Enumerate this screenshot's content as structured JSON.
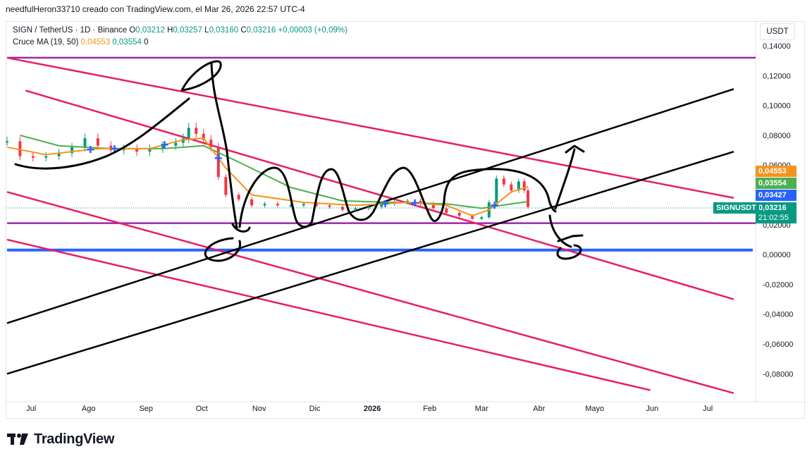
{
  "header": {
    "attribution": "needfulHeron33710 creado con TradingView.com, el Mar 26, 2026 22:57 UTC-4"
  },
  "legend": {
    "pair": "SIGN / TetherUS · 1D · Binance",
    "open_label": "O",
    "open": "0,03212",
    "high_label": "H",
    "high": "0,03257",
    "low_label": "L",
    "low": "0,03160",
    "close_label": "C",
    "close": "0,03216",
    "change": "+0,00003 (+0,09%)",
    "indicator": "Cruce MA (19, 50)",
    "ma19_value": "0,04553",
    "ma50_value": "0,03554",
    "ma_extra": "0"
  },
  "axis": {
    "currency": "USDT"
  },
  "price_tags": {
    "red": "0,04553",
    "green": "0,03554",
    "blue": "0,03427",
    "last": "0,03216",
    "symbol": "SIGNUSDT",
    "countdown": "21:02:55"
  },
  "brand": {
    "name": "TradingView"
  },
  "colors": {
    "up": "#089981",
    "down": "#f23645",
    "ma19": "#f7931a",
    "ma50": "#4caf50",
    "channel_red": "#e91e63",
    "level_purple": "#9c27b0",
    "level_blue": "#2962ff",
    "trend_black": "#000000"
  },
  "chart_data": {
    "type": "line",
    "title": "SIGN / TetherUS · 1D · Binance",
    "xlabel": "",
    "ylabel": "",
    "x_ticks": [
      "Jul",
      "Ago",
      "Sep",
      "Oct",
      "Nov",
      "Dic",
      "2026",
      "Feb",
      "Mar",
      "Abr",
      "Mayo",
      "Jun",
      "Jul"
    ],
    "y_ticks": [
      "0,14000",
      "0,12000",
      "0,10000",
      "0,08000",
      "0,06000",
      "0,04000",
      "0,02000",
      "0,00000",
      "-0,02000",
      "-0,04000",
      "-0,06000",
      "-0,08000"
    ],
    "ylim": [
      -0.09,
      0.146
    ],
    "grid": false,
    "price_series": {
      "name": "SIGNUSDT",
      "x": [
        "2025-06-18",
        "2025-06-25",
        "2025-07-02",
        "2025-07-09",
        "2025-07-16",
        "2025-07-23",
        "2025-07-30",
        "2025-08-06",
        "2025-08-13",
        "2025-08-20",
        "2025-08-27",
        "2025-09-03",
        "2025-09-10",
        "2025-09-17",
        "2025-09-21",
        "2025-09-24",
        "2025-09-28",
        "2025-10-02",
        "2025-10-06",
        "2025-10-10",
        "2025-10-14",
        "2025-10-21",
        "2025-10-28",
        "2025-11-04",
        "2025-11-11",
        "2025-11-18",
        "2025-11-25",
        "2025-12-02",
        "2025-12-09",
        "2025-12-16",
        "2025-12-23",
        "2025-12-30",
        "2026-01-06",
        "2026-01-13",
        "2026-01-20",
        "2026-01-27",
        "2026-02-03",
        "2026-02-10",
        "2026-02-17",
        "2026-02-24",
        "2026-03-01",
        "2026-03-05",
        "2026-03-09",
        "2026-03-13",
        "2026-03-17",
        "2026-03-21",
        "2026-03-24",
        "2026-03-26"
      ],
      "values": [
        0.076,
        0.066,
        0.065,
        0.066,
        0.068,
        0.072,
        0.078,
        0.073,
        0.07,
        0.071,
        0.069,
        0.071,
        0.073,
        0.075,
        0.078,
        0.085,
        0.081,
        0.077,
        0.072,
        0.052,
        0.04,
        0.037,
        0.033,
        0.034,
        0.033,
        0.033,
        0.034,
        0.033,
        0.032,
        0.03,
        0.031,
        0.032,
        0.034,
        0.035,
        0.036,
        0.034,
        0.031,
        0.028,
        0.026,
        0.024,
        0.025,
        0.035,
        0.051,
        0.047,
        0.043,
        0.049,
        0.043,
        0.032
      ]
    },
    "ma19": {
      "name": "MA 19",
      "x": [
        "2025-06-18",
        "2025-07-09",
        "2025-08-06",
        "2025-09-03",
        "2025-09-21",
        "2025-10-02",
        "2025-10-14",
        "2025-10-28",
        "2025-11-25",
        "2025-12-23",
        "2026-01-20",
        "2026-02-10",
        "2026-02-24",
        "2026-03-05",
        "2026-03-17",
        "2026-03-26"
      ],
      "values": [
        0.072,
        0.067,
        0.071,
        0.071,
        0.077,
        0.078,
        0.058,
        0.04,
        0.035,
        0.033,
        0.035,
        0.033,
        0.026,
        0.03,
        0.042,
        0.0455
      ]
    },
    "ma50": {
      "name": "MA 50",
      "x": [
        "2025-06-25",
        "2025-07-16",
        "2025-08-13",
        "2025-09-10",
        "2025-10-02",
        "2025-10-21",
        "2025-11-18",
        "2025-12-16",
        "2026-01-13",
        "2026-02-10",
        "2026-03-01",
        "2026-03-17",
        "2026-03-26"
      ],
      "values": [
        0.08,
        0.073,
        0.071,
        0.071,
        0.073,
        0.062,
        0.045,
        0.036,
        0.035,
        0.034,
        0.031,
        0.034,
        0.0355
      ]
    },
    "horizontal_levels": [
      {
        "color": "purple",
        "value": 0.132
      },
      {
        "color": "purple",
        "value": 0.021
      },
      {
        "color": "blue",
        "value": 0.003
      }
    ],
    "trend_lines": [
      {
        "color": "red",
        "from": [
          "2025-06-18",
          0.132
        ],
        "to": [
          "2026-07-15",
          0.038
        ]
      },
      {
        "color": "red",
        "from": [
          "2025-06-28",
          0.11
        ],
        "to": [
          "2026-07-15",
          -0.03
        ]
      },
      {
        "color": "red",
        "from": [
          "2025-06-18",
          0.042
        ],
        "to": [
          "2026-07-15",
          -0.093
        ]
      },
      {
        "color": "red",
        "from": [
          "2025-06-18",
          0.01
        ],
        "to": [
          "2026-05-31",
          -0.091
        ]
      },
      {
        "color": "black",
        "from": [
          "2025-06-18",
          -0.046
        ],
        "to": [
          "2026-07-15",
          0.111
        ]
      },
      {
        "color": "black",
        "from": [
          "2025-06-18",
          -0.08
        ],
        "to": [
          "2026-07-15",
          0.069
        ]
      }
    ],
    "crossover_markers": [
      "2025-08-02",
      "2025-08-15",
      "2025-09-11",
      "2025-10-10",
      "2026-01-08",
      "2026-01-24",
      "2026-03-08"
    ]
  }
}
